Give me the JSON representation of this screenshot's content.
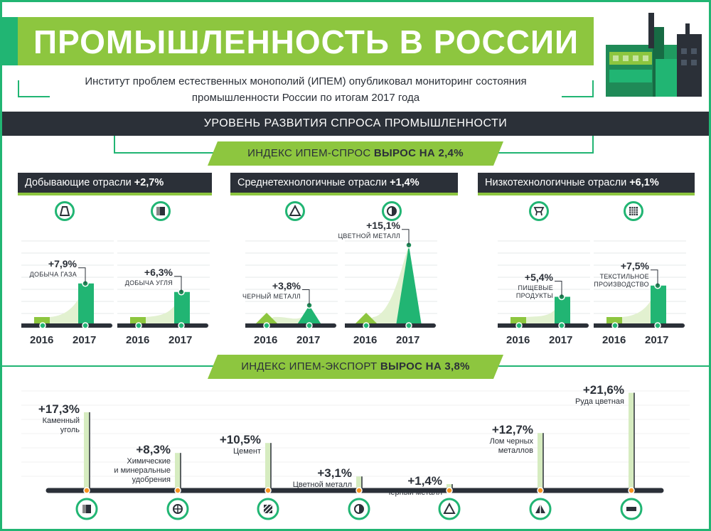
{
  "header": {
    "title": "ПРОМЫШЛЕННОСТЬ В РОССИИ",
    "subtitle_line1": "Институт проблем естественных монополий (ИПЕМ) опубликовал мониторинг состояния",
    "subtitle_line2": "промышленности России по итогам 2017 года"
  },
  "demand": {
    "section_title": "УРОВЕНЬ РАЗВИТИЯ СПРОСА ПРОМЫШЛЕННОСТИ",
    "index_label": "ИНДЕКС ИПЕМ-СПРОС ",
    "index_value": "ВЫРОС НА 2,4%",
    "categories": [
      {
        "name": "Добывающие отрасли ",
        "value": "+2,7%"
      },
      {
        "name": "Среднетехнологичные отрасли ",
        "value": "+1,4%"
      },
      {
        "name": "Низкотехнологичные отрасли ",
        "value": "+6,1%"
      }
    ],
    "charts": [
      {
        "icon": "gas-extraction-icon",
        "pct": "+7,9%",
        "label": "ДОБЫЧА ГАЗА",
        "value": 7.9,
        "y1": "2016",
        "y2": "2017"
      },
      {
        "icon": "coal-icon",
        "pct": "+6,3%",
        "label": "ДОБЫЧА УГЛЯ",
        "value": 6.3,
        "y1": "2016",
        "y2": "2017"
      },
      {
        "icon": "ferrous-metal-icon",
        "pct": "+3,8%",
        "label": "ЧЕРНЫЙ МЕТАЛЛ",
        "value": 3.8,
        "y1": "2016",
        "y2": "2017"
      },
      {
        "icon": "nonferrous-metal-icon",
        "pct": "+15,1%",
        "label": "ЦВЕТНОЙ МЕТАЛЛ",
        "value": 15.1,
        "y1": "2016",
        "y2": "2017"
      },
      {
        "icon": "food-icon",
        "pct": "+5,4%",
        "label1": "ПИЩЕВЫЕ",
        "label2": "ПРОДУКТЫ",
        "value": 5.4,
        "y1": "2016",
        "y2": "2017"
      },
      {
        "icon": "textile-icon",
        "pct": "+7,5%",
        "label1": "ТЕКСТИЛЬНОЕ",
        "label2": "ПРОИЗВОДСТВО",
        "value": 7.5,
        "y1": "2016",
        "y2": "2017"
      }
    ]
  },
  "export": {
    "index_label": "ИНДЕКС ИПЕМ-ЭКСПОРТ ",
    "index_value": "ВЫРОС НА 3,8%",
    "items": [
      {
        "pct": "+17,3%",
        "lines": [
          "Каменный",
          "уголь"
        ],
        "value": 17.3,
        "icon": "coal-icon"
      },
      {
        "pct": "+8,3%",
        "lines": [
          "Химические",
          "и минеральные",
          "удобрения"
        ],
        "value": 8.3,
        "icon": "fertilizer-icon"
      },
      {
        "pct": "+10,5%",
        "lines": [
          "Цемент"
        ],
        "value": 10.5,
        "icon": "cement-icon"
      },
      {
        "pct": "+3,1%",
        "lines": [
          "Цветной металл"
        ],
        "value": 3.1,
        "icon": "nonferrous-metal-icon"
      },
      {
        "pct": "+1,4%",
        "lines": [
          "Черный металл"
        ],
        "value": 1.4,
        "icon": "ferrous-metal-icon"
      },
      {
        "pct": "+12,7%",
        "lines": [
          "Лом черных",
          "металлов"
        ],
        "value": 12.7,
        "icon": "scrap-metal-icon"
      },
      {
        "pct": "+21,6%",
        "lines": [
          "Руда цветная"
        ],
        "value": 21.6,
        "icon": "ore-icon"
      }
    ]
  },
  "colors": {
    "dark": "#2b3038",
    "green": "#21b573",
    "lime": "#8dc63f",
    "orange": "#f7931e"
  }
}
